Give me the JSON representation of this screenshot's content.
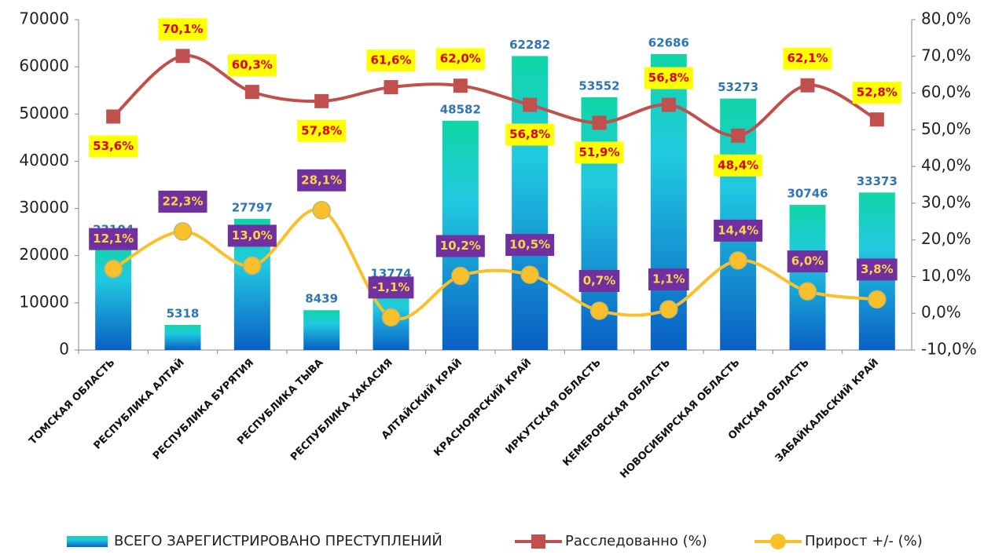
{
  "chart_data": {
    "type": "bar",
    "categories": [
      "ТОМСКАЯ ОБЛАСТЬ",
      "РЕСПУБЛИКА АЛТАЙ",
      "РЕСПУБЛИКА БУРЯТИЯ",
      "РЕСПУБЛИКА ТЫВА",
      "РЕСПУБЛИКА ХАКАСИЯ",
      "АЛТАЙСКИЙ КРАЙ",
      "КРАСНОЯРСКИЙ КРАЙ",
      "ИРКУТСКАЯ ОБЛАСТЬ",
      "КЕМЕРОВСКАЯ ОБЛАСТЬ",
      "НОВОСИБИРСКАЯ ОБЛАСТЬ",
      "ОМСКАЯ ОБЛАСТЬ",
      "ЗАБАЙКАЛЬСКИЙ КРАЙ"
    ],
    "series": [
      {
        "name": "ВСЕГО ЗАРЕГИСТРИРОВАНО ПРЕСТУПЛЕНИЙ",
        "type": "bar",
        "color": "#1aa3d9",
        "values": [
          23104,
          5318,
          27797,
          8439,
          13774,
          48582,
          62282,
          53552,
          62686,
          53273,
          30746,
          33373
        ]
      },
      {
        "name": "Расследованно (%)",
        "type": "line",
        "axis": "y2",
        "color": "#c0504d",
        "values": [
          53.6,
          70.1,
          60.3,
          57.8,
          61.6,
          62.0,
          56.8,
          51.9,
          56.8,
          48.4,
          62.1,
          52.8
        ],
        "value_labels": [
          "53,6%",
          "70,1%",
          "60,3%",
          "57,8%",
          "61,6%",
          "62,0%",
          "56,8%",
          "51,9%",
          "56,8%",
          "48,4%",
          "62,1%",
          "52,8%"
        ]
      },
      {
        "name": "Прирост +/- (%)",
        "type": "line",
        "axis": "y2",
        "color": "#f9c02b",
        "values": [
          12.1,
          22.3,
          13.0,
          28.1,
          -1.1,
          10.2,
          10.5,
          0.7,
          1.1,
          14.4,
          6.0,
          3.8
        ],
        "value_labels": [
          "12,1%",
          "22,3%",
          "13,0%",
          "28,1%",
          "-1,1%",
          "10,2%",
          "10,5%",
          "0,7%",
          "1,1%",
          "14,4%",
          "6,0%",
          "3,8%"
        ]
      }
    ],
    "ylim": [
      0,
      70000
    ],
    "yticks": [
      0,
      10000,
      20000,
      30000,
      40000,
      50000,
      60000,
      70000
    ],
    "y2lim": [
      -10,
      80
    ],
    "y2ticks": [
      {
        "value": -10,
        "label": "-10,0%"
      },
      {
        "value": 0,
        "label": "0,0%"
      },
      {
        "value": 10,
        "label": "10,0%"
      },
      {
        "value": 20,
        "label": "20,0%"
      },
      {
        "value": 30,
        "label": "30,0%"
      },
      {
        "value": 40,
        "label": "40,0%"
      },
      {
        "value": 50,
        "label": "50,0%"
      },
      {
        "value": 60,
        "label": "60,0%"
      },
      {
        "value": 70,
        "label": "70,0%"
      },
      {
        "value": 80,
        "label": "80,0%"
      }
    ],
    "grid": false
  }
}
